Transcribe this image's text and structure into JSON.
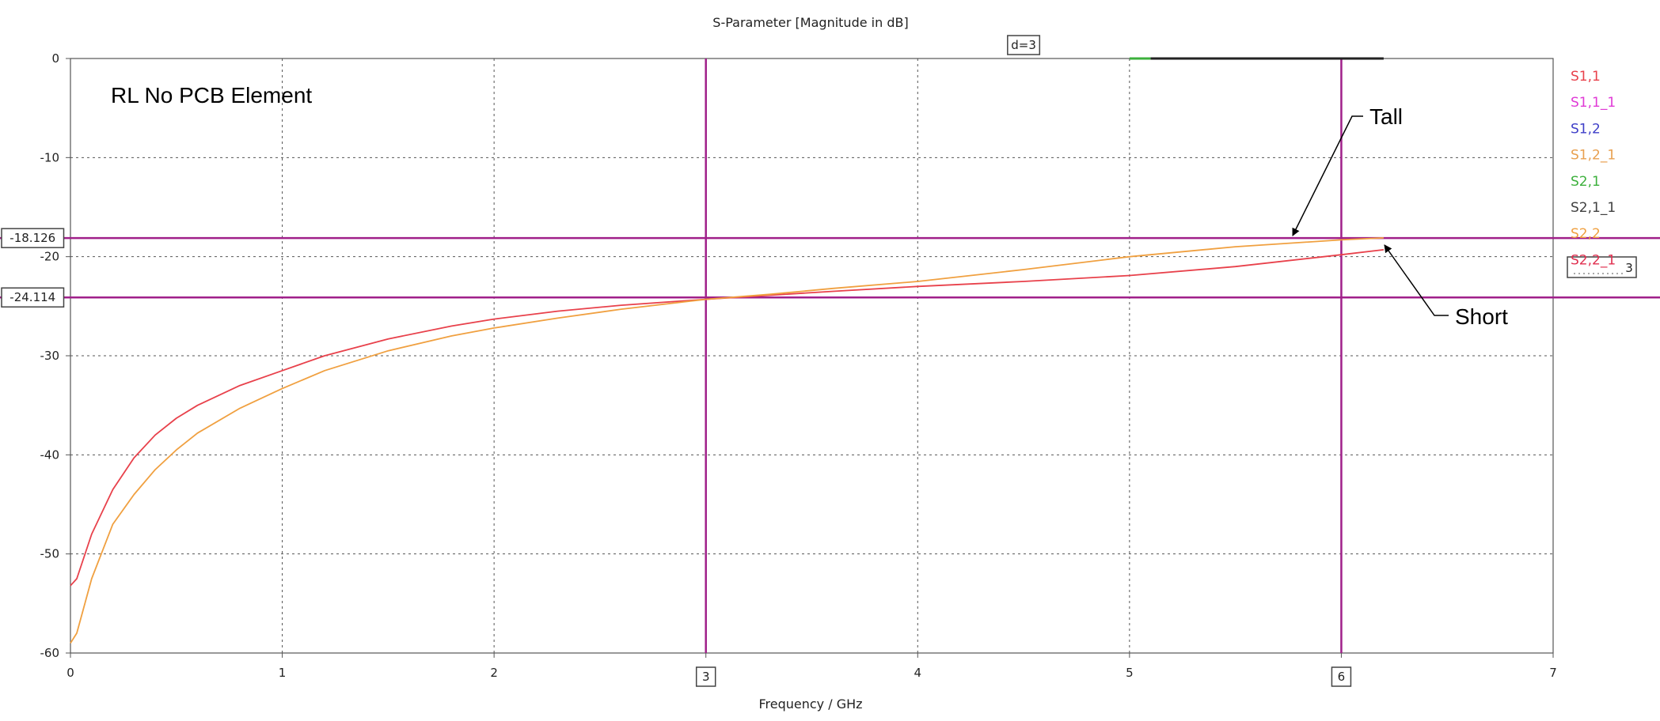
{
  "chart_data": {
    "type": "line",
    "title": "S-Parameter [Magnitude in dB]",
    "xlabel": "Frequency / GHz",
    "ylabel": "",
    "xlim": [
      0,
      7
    ],
    "ylim": [
      -60,
      0
    ],
    "xticks": [
      0,
      1,
      2,
      3,
      4,
      5,
      6,
      7
    ],
    "yticks": [
      0,
      -10,
      -20,
      -30,
      -40,
      -50,
      -60
    ],
    "grid": true,
    "legend_position": "right",
    "legend": [
      {
        "name": "S1,1",
        "color": "#e8414b"
      },
      {
        "name": "S1,1_1",
        "color": "#e03ad6"
      },
      {
        "name": "S1,2",
        "color": "#3f3fc8"
      },
      {
        "name": "S1,2_1",
        "color": "#e8a050"
      },
      {
        "name": "S2,1",
        "color": "#3cb03c"
      },
      {
        "name": "S2,1_1",
        "color": "#404040"
      },
      {
        "name": "S2,2",
        "color": "#f0a040"
      },
      {
        "name": "S2,2_1",
        "color": "#e03050"
      }
    ],
    "series": [
      {
        "color": "#e8414b",
        "x": [
          0.0,
          0.03,
          0.1,
          0.2,
          0.3,
          0.4,
          0.5,
          0.6,
          0.8,
          1.0,
          1.2,
          1.5,
          1.8,
          2.0,
          2.3,
          2.6,
          3.0,
          3.3,
          3.6,
          4.0,
          4.5,
          5.0,
          5.5,
          6.0,
          6.2
        ],
        "y": [
          -53.2,
          -52.5,
          -48.0,
          -43.5,
          -40.3,
          -38.0,
          -36.3,
          -35.0,
          -33.0,
          -31.5,
          -30.0,
          -28.3,
          -27.0,
          -26.3,
          -25.5,
          -24.9,
          -24.3,
          -23.9,
          -23.5,
          -23.0,
          -22.5,
          -21.9,
          -21.0,
          -19.8,
          -19.3
        ]
      },
      {
        "color": "#f0a040",
        "x": [
          0.0,
          0.03,
          0.1,
          0.2,
          0.3,
          0.4,
          0.5,
          0.6,
          0.8,
          1.0,
          1.2,
          1.5,
          1.8,
          2.0,
          2.3,
          2.6,
          3.0,
          3.3,
          3.6,
          4.0,
          4.5,
          5.0,
          5.5,
          6.0,
          6.2
        ],
        "y": [
          -59.0,
          -58.0,
          -52.5,
          -47.0,
          -44.0,
          -41.5,
          -39.5,
          -37.8,
          -35.3,
          -33.3,
          -31.5,
          -29.5,
          -28.0,
          -27.2,
          -26.2,
          -25.3,
          -24.3,
          -23.8,
          -23.2,
          -22.5,
          -21.3,
          -20.0,
          -19.0,
          -18.3,
          -18.1
        ]
      },
      {
        "color": "#3cb03c",
        "x": [
          5.0,
          5.1
        ],
        "y": [
          0,
          0
        ]
      },
      {
        "color": "#222222",
        "x": [
          5.1,
          6.2
        ],
        "y": [
          0,
          0
        ]
      }
    ],
    "markers": {
      "vertical": [
        3,
        6
      ],
      "horizontal": [
        -18.126,
        -24.114
      ],
      "vertical_labels": [
        "3",
        "6"
      ],
      "horizontal_labels": [
        "-18.126",
        "-24.114"
      ],
      "delta_label": "d=3",
      "right_label": "3",
      "color": "#a0208a"
    },
    "annotations": [
      {
        "text": "RL No PCB Element"
      },
      {
        "text": "Tall"
      },
      {
        "text": "Short"
      }
    ]
  }
}
